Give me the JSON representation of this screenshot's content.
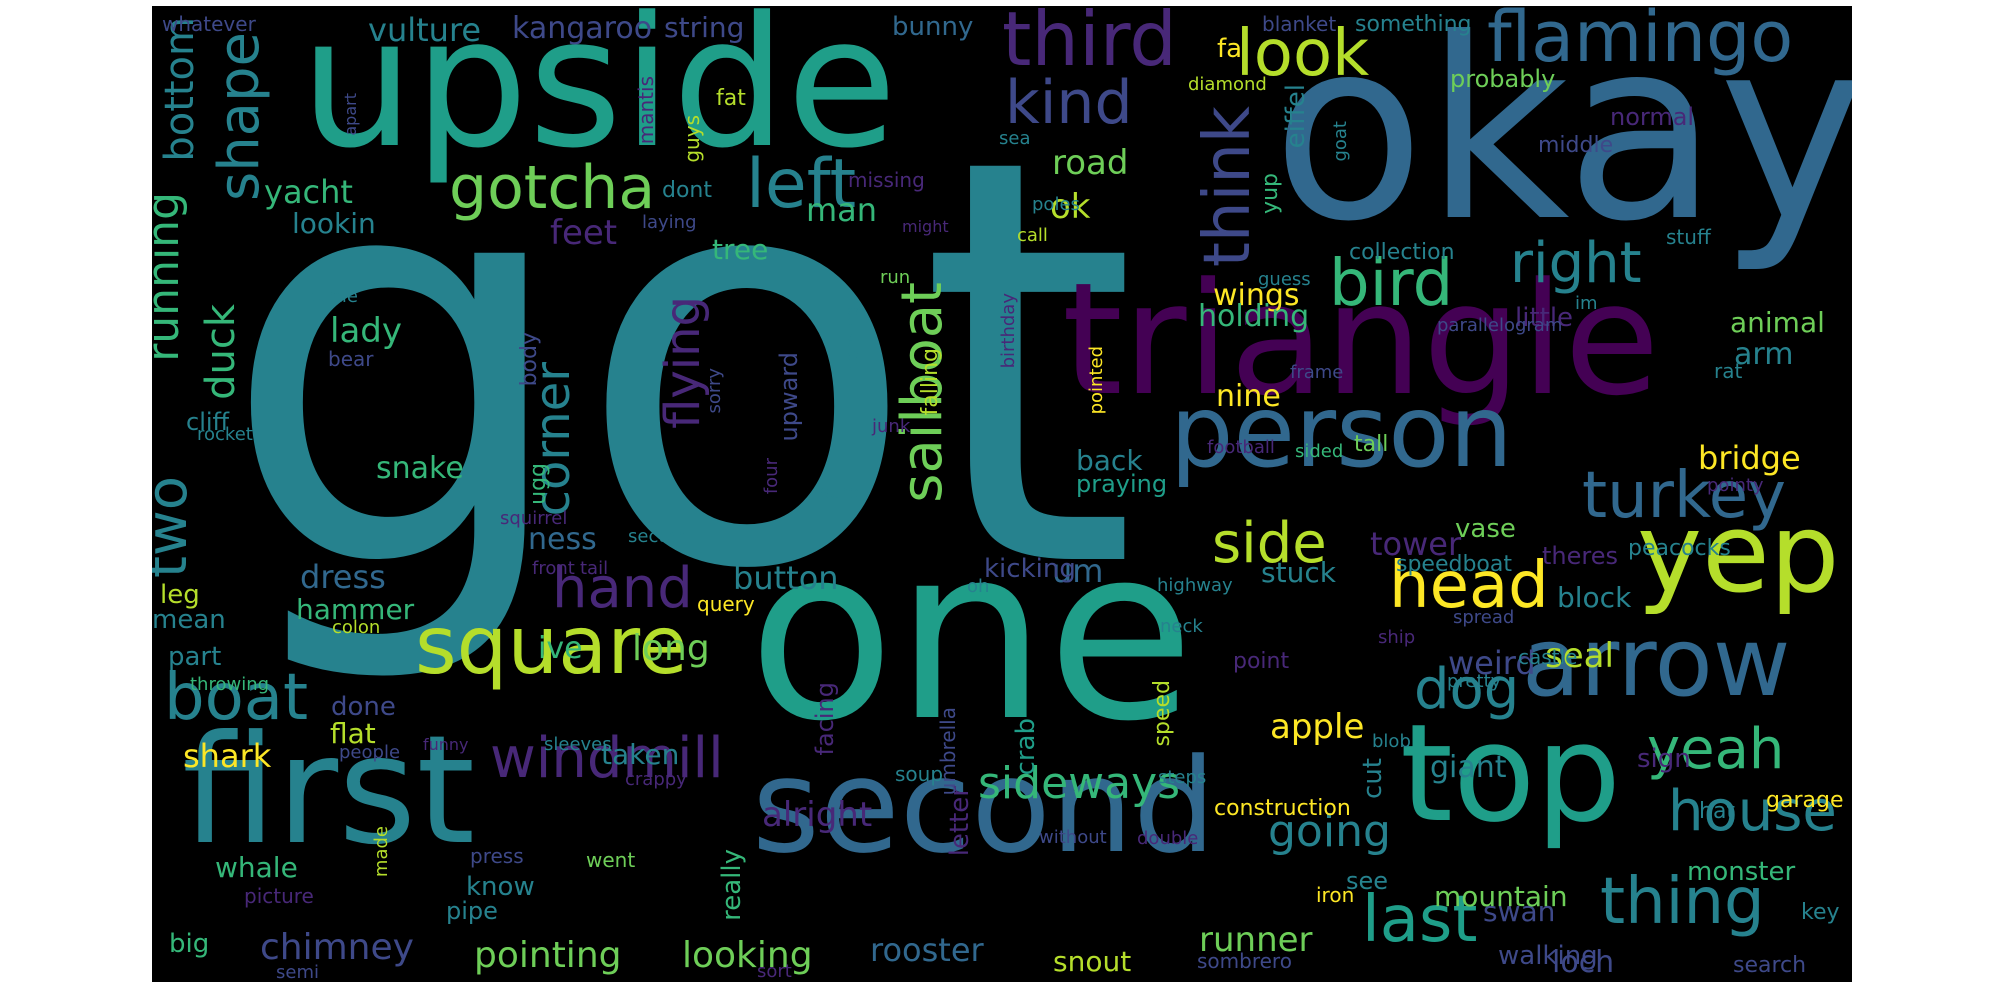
{
  "palette": {
    "v0": "#440154",
    "v1": "#482878",
    "v2": "#3e4989",
    "v3": "#31688e",
    "v4": "#26828e",
    "v5": "#1f9e89",
    "v6": "#35b779",
    "v7": "#6ece58",
    "v8": "#b5de2b",
    "v9": "#fde725"
  },
  "words": [
    {
      "text": "got",
      "color": "#26828e"
    },
    {
      "text": "okay",
      "color": "#31688e"
    },
    {
      "text": "one",
      "color": "#1f9e89"
    },
    {
      "text": "upside",
      "color": "#1f9e89"
    },
    {
      "text": "triangle",
      "color": "#440154"
    },
    {
      "text": "first",
      "color": "#26828e"
    },
    {
      "text": "second",
      "color": "#31688e"
    },
    {
      "text": "top",
      "color": "#1f9e89"
    },
    {
      "text": "person",
      "color": "#31688e"
    },
    {
      "text": "yep",
      "color": "#b5de2b"
    },
    {
      "text": "arrow",
      "color": "#31688e"
    },
    {
      "text": "square",
      "color": "#b5de2b"
    },
    {
      "text": "flamingo",
      "color": "#31688e"
    },
    {
      "text": "third",
      "color": "#482878"
    },
    {
      "text": "look",
      "color": "#b5de2b"
    },
    {
      "text": "kind",
      "color": "#3e4989"
    },
    {
      "text": "gotcha",
      "color": "#6ece58"
    },
    {
      "text": "left",
      "color": "#26828e"
    },
    {
      "text": "think",
      "color": "#3e4989"
    },
    {
      "text": "bird",
      "color": "#35b779"
    },
    {
      "text": "right",
      "color": "#26828e"
    },
    {
      "text": "turkey",
      "color": "#31688e"
    },
    {
      "text": "head",
      "color": "#fde725"
    },
    {
      "text": "hand",
      "color": "#482878"
    },
    {
      "text": "boat",
      "color": "#26828e"
    },
    {
      "text": "windmill",
      "color": "#482878"
    },
    {
      "text": "thing",
      "color": "#26828e"
    },
    {
      "text": "house",
      "color": "#26828e"
    },
    {
      "text": "yeah",
      "color": "#35b779"
    },
    {
      "text": "last",
      "color": "#1f9e89"
    },
    {
      "text": "dog",
      "color": "#26828e"
    },
    {
      "text": "side",
      "color": "#b5de2b"
    },
    {
      "text": "sideways",
      "color": "#35b779"
    },
    {
      "text": "going",
      "color": "#26828e"
    },
    {
      "text": "shape",
      "color": "#26828e"
    },
    {
      "text": "running",
      "color": "#35b779"
    },
    {
      "text": "two",
      "color": "#26828e"
    },
    {
      "text": "bottom",
      "color": "#26828e"
    },
    {
      "text": "sailboat",
      "color": "#6ece58"
    },
    {
      "text": "flying",
      "color": "#482878"
    },
    {
      "text": "corner",
      "color": "#26828e"
    },
    {
      "text": "duck",
      "color": "#35b779"
    },
    {
      "text": "vulture",
      "color": "#26828e"
    },
    {
      "text": "kangaroo",
      "color": "#3e4989"
    },
    {
      "text": "string",
      "color": "#3e4989"
    },
    {
      "text": "bunny",
      "color": "#31688e"
    },
    {
      "text": "yacht",
      "color": "#35b779"
    },
    {
      "text": "lookin",
      "color": "#26828e"
    },
    {
      "text": "road",
      "color": "#6ece58"
    },
    {
      "text": "ok",
      "color": "#b5de2b"
    },
    {
      "text": "man",
      "color": "#35b779"
    },
    {
      "text": "feet",
      "color": "#482878"
    },
    {
      "text": "tree",
      "color": "#35b779"
    },
    {
      "text": "lady",
      "color": "#35b779"
    },
    {
      "text": "snake",
      "color": "#35b779"
    },
    {
      "text": "dress",
      "color": "#31688e"
    },
    {
      "text": "hammer",
      "color": "#35b779"
    },
    {
      "text": "button",
      "color": "#26828e"
    },
    {
      "text": "long",
      "color": "#6ece58"
    },
    {
      "text": "ive",
      "color": "#35b779"
    },
    {
      "text": "nine",
      "color": "#fde725"
    },
    {
      "text": "bridge",
      "color": "#fde725"
    },
    {
      "text": "tower",
      "color": "#482878"
    },
    {
      "text": "um",
      "color": "#31688e"
    },
    {
      "text": "wings",
      "color": "#fde725"
    },
    {
      "text": "holding",
      "color": "#35b779"
    },
    {
      "text": "arm",
      "color": "#26828e"
    },
    {
      "text": "animal",
      "color": "#6ece58"
    },
    {
      "text": "little",
      "color": "#482878"
    },
    {
      "text": "apple",
      "color": "#fde725"
    },
    {
      "text": "seal",
      "color": "#b5de2b"
    },
    {
      "text": "weird",
      "color": "#3e4989"
    },
    {
      "text": "block",
      "color": "#26828e"
    },
    {
      "text": "giant",
      "color": "#26828e"
    },
    {
      "text": "pointing",
      "color": "#6ece58"
    },
    {
      "text": "looking",
      "color": "#6ece58"
    },
    {
      "text": "chimney",
      "color": "#3e4989"
    },
    {
      "text": "rooster",
      "color": "#31688e"
    },
    {
      "text": "runner",
      "color": "#6ece58"
    },
    {
      "text": "snout",
      "color": "#b5de2b"
    },
    {
      "text": "loch",
      "color": "#3e4989"
    },
    {
      "text": "swan",
      "color": "#3e4989"
    },
    {
      "text": "mountain",
      "color": "#6ece58"
    },
    {
      "text": "walking",
      "color": "#3e4989"
    },
    {
      "text": "monster",
      "color": "#35b779"
    },
    {
      "text": "whale",
      "color": "#35b779"
    },
    {
      "text": "shark",
      "color": "#fde725"
    },
    {
      "text": "alright",
      "color": "#482878"
    },
    {
      "text": "taken",
      "color": "#26828e"
    },
    {
      "text": "flat",
      "color": "#b5de2b"
    },
    {
      "text": "done",
      "color": "#3e4989"
    },
    {
      "text": "ness",
      "color": "#31688e"
    },
    {
      "text": "stuck",
      "color": "#26828e"
    },
    {
      "text": "back",
      "color": "#26828e"
    },
    {
      "text": "praying",
      "color": "#1f9e89"
    },
    {
      "text": "kicking",
      "color": "#3e4989"
    },
    {
      "text": "crab",
      "color": "#1f9e89"
    },
    {
      "text": "cut",
      "color": "#26828e"
    },
    {
      "text": "letter",
      "color": "#482878"
    },
    {
      "text": "speed",
      "color": "#b5de2b"
    },
    {
      "text": "sign",
      "color": "#482878"
    },
    {
      "text": "hat",
      "color": "#26828e"
    },
    {
      "text": "key",
      "color": "#26828e"
    },
    {
      "text": "garage",
      "color": "#fde725"
    },
    {
      "text": "construction",
      "color": "#fde725"
    },
    {
      "text": "see",
      "color": "#26828e"
    },
    {
      "text": "speedboat",
      "color": "#26828e"
    },
    {
      "text": "theres",
      "color": "#482878"
    },
    {
      "text": "peacocks",
      "color": "#26828e"
    },
    {
      "text": "vase",
      "color": "#6ece58"
    },
    {
      "text": "leg",
      "color": "#b5de2b"
    },
    {
      "text": "mean",
      "color": "#26828e"
    },
    {
      "text": "part",
      "color": "#26828e"
    },
    {
      "text": "big",
      "color": "#35b779"
    },
    {
      "text": "know",
      "color": "#26828e"
    },
    {
      "text": "pipe",
      "color": "#26828e"
    },
    {
      "text": "really",
      "color": "#35b779"
    },
    {
      "text": "went",
      "color": "#6ece58"
    },
    {
      "text": "made",
      "color": "#b5de2b"
    },
    {
      "text": "press",
      "color": "#3e4989"
    },
    {
      "text": "picture",
      "color": "#482878"
    },
    {
      "text": "semi",
      "color": "#3e4989"
    },
    {
      "text": "sort",
      "color": "#482878"
    },
    {
      "text": "search",
      "color": "#3e4989"
    },
    {
      "text": "sombrero",
      "color": "#3e4989"
    },
    {
      "text": "iron",
      "color": "#fde725"
    },
    {
      "text": "without",
      "color": "#3e4989"
    },
    {
      "text": "double",
      "color": "#482878"
    },
    {
      "text": "steps",
      "color": "#26828e"
    },
    {
      "text": "soup",
      "color": "#26828e"
    },
    {
      "text": "umbrella",
      "color": "#3e4989"
    },
    {
      "text": "crappy",
      "color": "#482878"
    },
    {
      "text": "sleeves",
      "color": "#26828e"
    },
    {
      "text": "funny",
      "color": "#482878"
    },
    {
      "text": "people",
      "color": "#3e4989"
    },
    {
      "text": "throwing",
      "color": "#35b779"
    },
    {
      "text": "colon",
      "color": "#b5de2b"
    },
    {
      "text": "query",
      "color": "#fde725"
    },
    {
      "text": "oh",
      "color": "#26828e"
    },
    {
      "text": "front",
      "color": "#482878"
    },
    {
      "text": "tail",
      "color": "#482878"
    },
    {
      "text": "sector",
      "color": "#26828e"
    },
    {
      "text": "highway",
      "color": "#26828e"
    },
    {
      "text": "neck",
      "color": "#26828e"
    },
    {
      "text": "spread",
      "color": "#3e4989"
    },
    {
      "text": "ship",
      "color": "#482878"
    },
    {
      "text": "pretty",
      "color": "#26828e"
    },
    {
      "text": "castle",
      "color": "#26828e"
    },
    {
      "text": "point",
      "color": "#482878"
    },
    {
      "text": "blob",
      "color": "#26828e"
    },
    {
      "text": "facing",
      "color": "#482878"
    },
    {
      "text": "falling",
      "color": "#b5de2b"
    },
    {
      "text": "upward",
      "color": "#3e4989"
    },
    {
      "text": "four",
      "color": "#482878"
    },
    {
      "text": "sorry",
      "color": "#3e4989"
    },
    {
      "text": "sure",
      "color": "#26828e"
    },
    {
      "text": "coming",
      "color": "#26828e"
    },
    {
      "text": "junk",
      "color": "#482878"
    },
    {
      "text": "birthday",
      "color": "#482878"
    },
    {
      "text": "pointed",
      "color": "#fde725"
    },
    {
      "text": "football",
      "color": "#482878"
    },
    {
      "text": "sided",
      "color": "#35b779"
    },
    {
      "text": "tall",
      "color": "#6ece58"
    },
    {
      "text": "frame",
      "color": "#3e4989"
    },
    {
      "text": "parallelogram",
      "color": "#3e4989"
    },
    {
      "text": "guess",
      "color": "#26828e"
    },
    {
      "text": "im",
      "color": "#26828e"
    },
    {
      "text": "rat",
      "color": "#26828e"
    },
    {
      "text": "pointy",
      "color": "#482878"
    },
    {
      "text": "cliff",
      "color": "#26828e"
    },
    {
      "text": "rocket",
      "color": "#26828e"
    },
    {
      "text": "bear",
      "color": "#3e4989"
    },
    {
      "text": "turtle",
      "color": "#26828e"
    },
    {
      "text": "body",
      "color": "#3e4989"
    },
    {
      "text": "ugg",
      "color": "#35b779"
    },
    {
      "text": "squirrel",
      "color": "#482878"
    },
    {
      "text": "run",
      "color": "#6ece58"
    },
    {
      "text": "call",
      "color": "#b5de2b"
    },
    {
      "text": "poles",
      "color": "#26828e"
    },
    {
      "text": "might",
      "color": "#482878"
    },
    {
      "text": "laying",
      "color": "#3e4989"
    },
    {
      "text": "missing",
      "color": "#482878"
    },
    {
      "text": "dont",
      "color": "#26828e"
    },
    {
      "text": "mantis",
      "color": "#482878"
    },
    {
      "text": "apart",
      "color": "#3e4989"
    },
    {
      "text": "whatever",
      "color": "#3e4989"
    },
    {
      "text": "guys",
      "color": "#b5de2b"
    },
    {
      "text": "fat",
      "color": "#b5de2b"
    },
    {
      "text": "sea",
      "color": "#26828e"
    },
    {
      "text": "diamond",
      "color": "#b5de2b"
    },
    {
      "text": "blanket",
      "color": "#3e4989"
    },
    {
      "text": "something",
      "color": "#26828e"
    },
    {
      "text": "probably",
      "color": "#6ece58"
    },
    {
      "text": "normal",
      "color": "#482878"
    },
    {
      "text": "middle",
      "color": "#3e4989"
    },
    {
      "text": "yup",
      "color": "#35b779"
    },
    {
      "text": "eiffel",
      "color": "#26828e"
    },
    {
      "text": "goat",
      "color": "#26828e"
    },
    {
      "text": "collection",
      "color": "#26828e"
    },
    {
      "text": "stuff",
      "color": "#26828e"
    },
    {
      "text": "fa",
      "color": "#fde725"
    }
  ]
}
